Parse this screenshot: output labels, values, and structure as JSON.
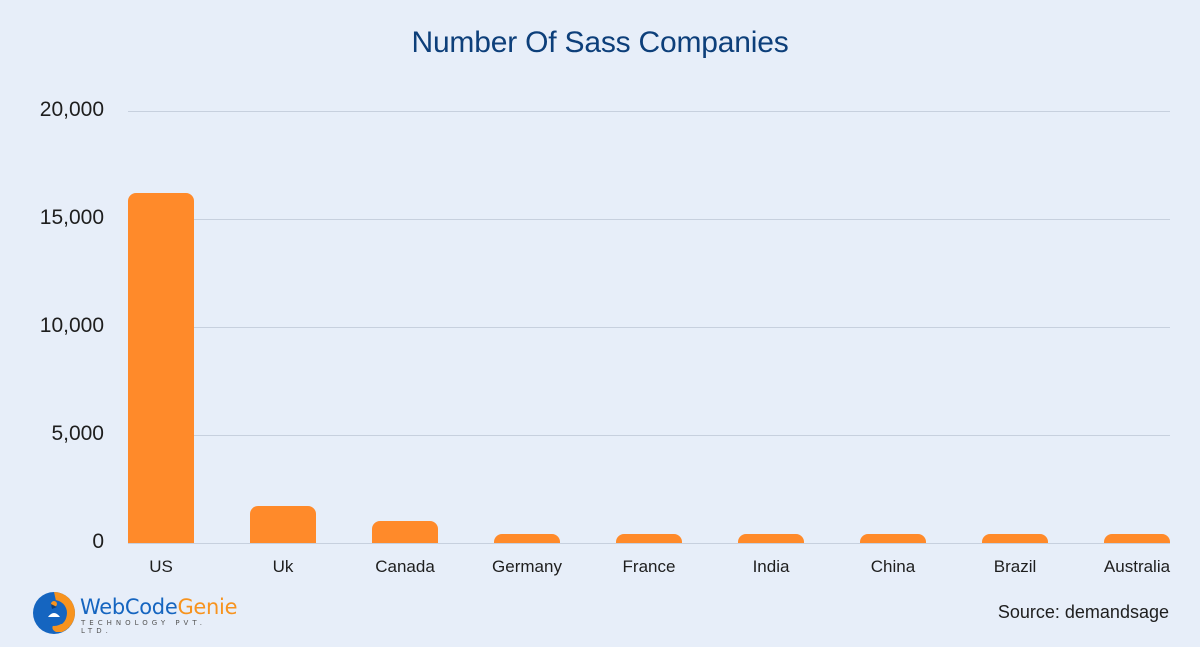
{
  "chart_data": {
    "type": "bar",
    "title": "Number Of Sass Companies",
    "categories": [
      "US",
      "Uk",
      "Canada",
      "Germany",
      "France",
      "India",
      "China",
      "Brazil",
      "Australia"
    ],
    "values": [
      16200,
      1700,
      1000,
      400,
      400,
      400,
      400,
      400,
      400
    ],
    "xlabel": "",
    "ylabel": "",
    "ylim": [
      0,
      20000
    ],
    "yticks": [
      0,
      5000,
      10000,
      15000,
      20000
    ],
    "ytick_labels": [
      "0",
      "5,000",
      "10,000",
      "15,000",
      "20,000"
    ],
    "grid": true,
    "legend": null,
    "bar_color": "#ff8a2a"
  },
  "colors": {
    "background": "#e7eef9",
    "title": "#0d3f7a",
    "bar": "#ff8a2a",
    "grid": "#c7d0de",
    "logo_blue": "#1565c0",
    "logo_orange": "#f7931e"
  },
  "footer": {
    "logo_part1": "WebCode",
    "logo_part2": "Genie",
    "logo_tagline": "TECHNOLOGY PVT. LTD.",
    "source_label": "Source:",
    "source_value": "demandsage"
  }
}
